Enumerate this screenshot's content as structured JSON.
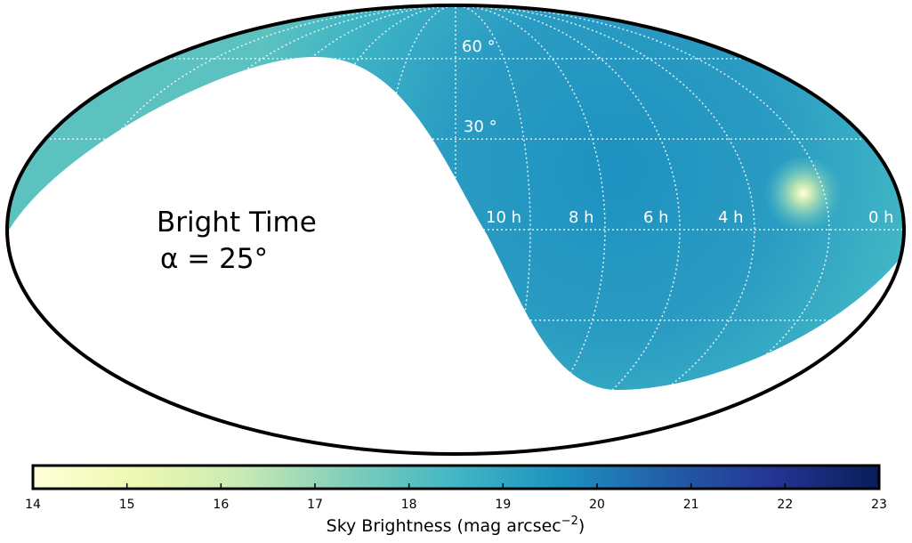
{
  "chart_data": {
    "type": "heatmap",
    "projection": "mollweide",
    "annotations": {
      "line1": "Bright Time",
      "line2": "α = 25°"
    },
    "colorbar": {
      "min": 14,
      "max": 23,
      "ticks": [
        "14",
        "15",
        "16",
        "17",
        "18",
        "19",
        "20",
        "21",
        "22",
        "23"
      ],
      "label": "Sky Brightness (mag arcsec",
      "label_sup": "−2",
      "label_end": ")",
      "colormap": "YlGnBu",
      "colormap_stops": [
        "#ffffd9",
        "#edf8b1",
        "#c7e9b4",
        "#7fcdbb",
        "#41b6c4",
        "#1d91c0",
        "#225ea8",
        "#253494",
        "#081d58"
      ]
    },
    "ra_labels": [
      "10 h",
      "8 h",
      "6 h",
      "4 h",
      "0 h"
    ],
    "dec_labels": [
      "60 °",
      "30 °"
    ],
    "bright_spot": {
      "ra_h": 1.6,
      "dec_deg": 14,
      "mag": 14.5
    }
  }
}
